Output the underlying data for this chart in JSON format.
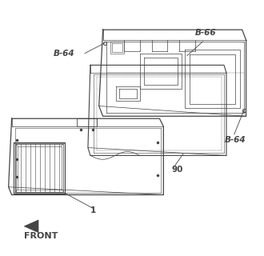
{
  "background_color": "#ffffff",
  "line_color": "#444444",
  "lw": 0.7,
  "labels": {
    "B64_top": "B-64",
    "B66": "B-66",
    "num90": "90",
    "num1": "1",
    "B64_bot": "B-64",
    "FRONT": "FRONT"
  }
}
